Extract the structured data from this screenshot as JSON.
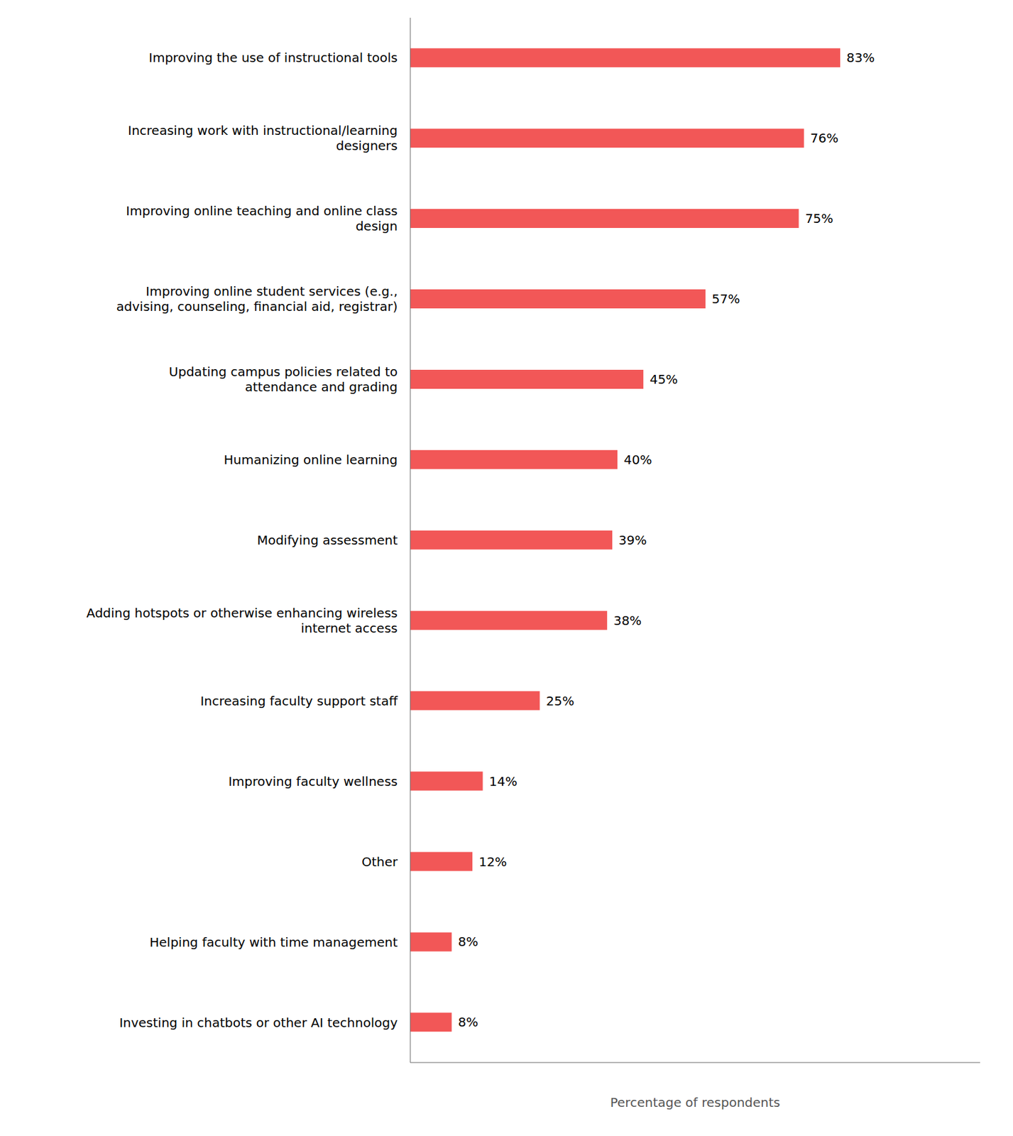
{
  "chart_data": {
    "type": "bar",
    "orientation": "horizontal",
    "categories": [
      "Improving the use of instructional tools",
      "Increasing work with instructional/learning\ndesigners",
      "Improving online teaching and online class\ndesign",
      "Improving online student services (e.g.,\nadvising, counseling, financial aid, registrar)",
      "Updating campus policies related to\nattendance and grading",
      "Humanizing online learning",
      "Modifying assessment",
      "Adding hotspots or otherwise enhancing wireless\ninternet access",
      "Increasing faculty support staff",
      "Improving faculty wellness",
      "Other",
      "Helping faculty with time management",
      "Investing in chatbots or other AI technology"
    ],
    "values": [
      83,
      76,
      75,
      57,
      45,
      40,
      39,
      38,
      25,
      14,
      12,
      8,
      8
    ],
    "value_labels": [
      "83%",
      "76%",
      "75%",
      "57%",
      "45%",
      "40%",
      "39%",
      "38%",
      "25%",
      "14%",
      "12%",
      "8%",
      "8%"
    ],
    "data_labels": true,
    "color": "#f25757",
    "xlabel": "Percentage of respondents",
    "xlim": [
      0,
      110
    ],
    "tick_labels": "y",
    "grid": false
  }
}
